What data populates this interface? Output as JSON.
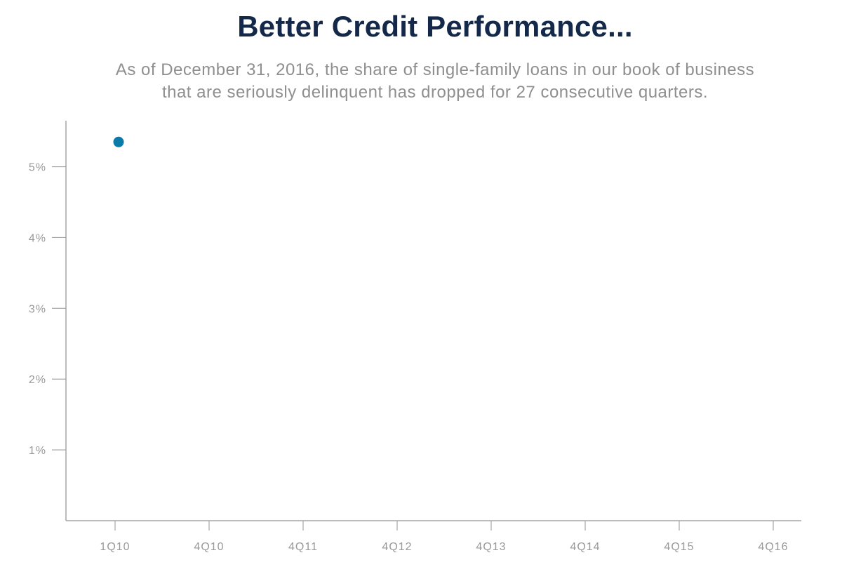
{
  "chart_data": {
    "type": "scatter",
    "title": "Better Credit Performance...",
    "subtitle_lines": [
      "As of December 31, 2016, the share of single-family loans in our book of business",
      "that are seriously delinquent has dropped for 27 consecutive quarters."
    ],
    "xlabel": "",
    "ylabel": "",
    "x_ticks": [
      "1Q10",
      "4Q10",
      "4Q11",
      "4Q12",
      "4Q13",
      "4Q14",
      "4Q15",
      "4Q16"
    ],
    "y_ticks": [
      "1%",
      "2%",
      "3%",
      "4%",
      "5%"
    ],
    "y_tick_values": [
      1,
      2,
      3,
      4,
      5
    ],
    "ylim": [
      0,
      5.65
    ],
    "grid": false,
    "series": [
      {
        "points": [
          {
            "x": "1Q10",
            "y": 5.35
          }
        ]
      }
    ],
    "colors": {
      "point": "#0a7aa8",
      "title": "#14294a",
      "subtitle": "#8f8f8f",
      "axis": "#a6a6a6",
      "tick_label": "#999999"
    }
  }
}
